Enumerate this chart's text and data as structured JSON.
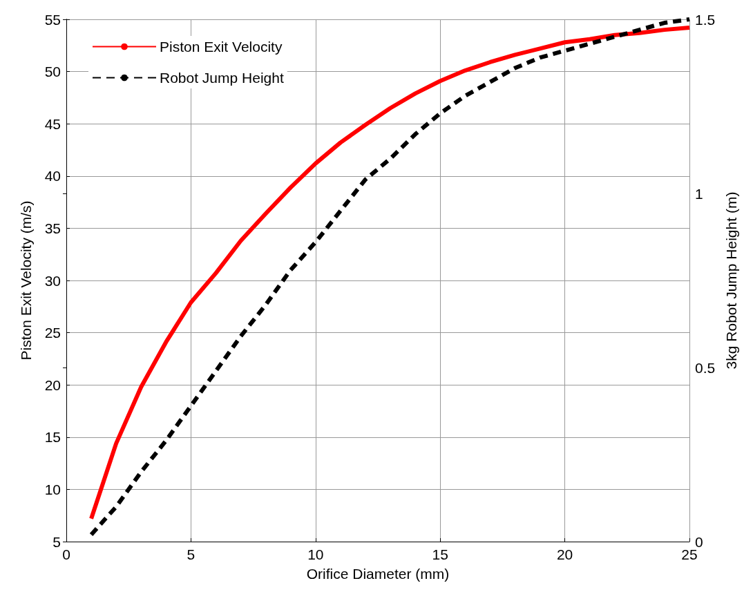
{
  "chart_data": {
    "type": "line",
    "xlabel": "Orifice Diameter (mm)",
    "ylabel": "Piston Exit Velocity (m/s)",
    "y2label": "3kg Robot Jump Height (m)",
    "x": [
      1,
      2,
      3,
      4,
      5,
      6,
      7,
      8,
      9,
      10,
      11,
      12,
      13,
      14,
      15,
      16,
      17,
      18,
      19,
      20,
      21,
      22,
      23,
      24,
      25
    ],
    "series": [
      {
        "name": "Piston Exit Velocity",
        "color": "#ff0000",
        "line_style": "solid",
        "values": [
          7.2,
          14.4,
          19.8,
          24.1,
          27.9,
          30.7,
          33.8,
          36.4,
          38.9,
          41.2,
          43.2,
          44.9,
          46.5,
          47.9,
          49.1,
          50.1,
          50.9,
          51.6,
          52.2,
          52.8,
          53.1,
          53.5,
          53.7,
          54.0,
          54.2
        ]
      },
      {
        "name": "Robot Jump Height",
        "color": "#000000",
        "line_style": "dashed",
        "axis": "y2",
        "values": [
          0.02,
          0.1,
          0.2,
          0.29,
          0.39,
          0.49,
          0.59,
          0.68,
          0.78,
          0.86,
          0.95,
          1.04,
          1.1,
          1.17,
          1.23,
          1.28,
          1.32,
          1.36,
          1.39,
          1.41,
          1.43,
          1.45,
          1.47,
          1.49,
          1.5
        ]
      }
    ],
    "xlim": [
      0,
      25
    ],
    "xticks": [
      0,
      5,
      10,
      15,
      20,
      25
    ],
    "ylim": [
      5,
      55
    ],
    "yticks": [
      5,
      10,
      15,
      20,
      25,
      30,
      35,
      40,
      45,
      50,
      55
    ],
    "y2lim": [
      0,
      1.5
    ],
    "y2ticks": [
      0,
      0.5,
      1,
      1.5
    ],
    "grid": true,
    "legend": "top left",
    "marker": "none"
  }
}
